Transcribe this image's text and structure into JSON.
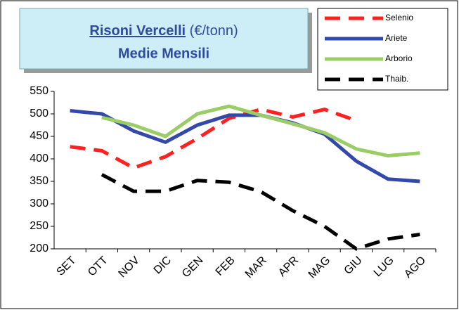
{
  "chart_data": {
    "type": "line",
    "title": "Risoni Vercelli",
    "unit": "(€/tonn)",
    "subtitle": "Medie Mensili",
    "categories": [
      "SET",
      "OTT",
      "NOV",
      "DIC",
      "GEN",
      "FEB",
      "MAR",
      "APR",
      "MAG",
      "GIU",
      "LUG",
      "AGO"
    ],
    "series": [
      {
        "name": "Selenio",
        "color": "#ff2020",
        "dash": "22 12",
        "values": [
          427,
          418,
          380,
          405,
          445,
          490,
          510,
          493,
          510,
          485,
          null,
          null
        ]
      },
      {
        "name": "Ariete",
        "color": "#3348a8",
        "dash": "none",
        "values": [
          507,
          500,
          462,
          437,
          475,
          497,
          497,
          480,
          455,
          395,
          355,
          350
        ]
      },
      {
        "name": "Arborio",
        "color": "#9acd66",
        "dash": "none",
        "values": [
          null,
          492,
          475,
          450,
          500,
          517,
          497,
          478,
          458,
          422,
          407,
          413
        ]
      },
      {
        "name": "Thaib.",
        "color": "#000000",
        "dash": "22 12",
        "values": [
          null,
          365,
          328,
          328,
          352,
          348,
          327,
          285,
          250,
          200,
          222,
          232
        ]
      }
    ],
    "ylim": [
      200,
      550
    ],
    "yticks": [
      200,
      250,
      300,
      350,
      400,
      450,
      500,
      550
    ],
    "legend": "top-right"
  }
}
